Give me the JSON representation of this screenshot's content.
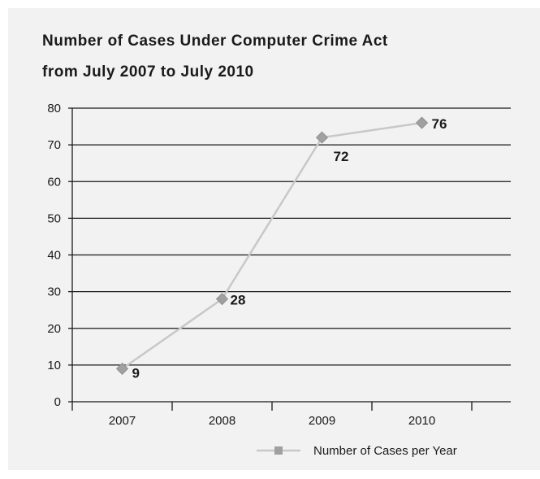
{
  "chart_data": {
    "type": "line",
    "title_line1": "Number of Cases Under Computer Crime Act",
    "title_line2": "from July 2007 to July 2010",
    "categories": [
      "2007",
      "2008",
      "2009",
      "2010"
    ],
    "series": [
      {
        "name": "Number of Cases per Year",
        "values": [
          9,
          28,
          72,
          76
        ],
        "labels": [
          "9",
          "28",
          "72",
          "76"
        ]
      }
    ],
    "ylim": [
      0,
      80
    ],
    "yticks": [
      "0",
      "10",
      "20",
      "30",
      "40",
      "50",
      "60",
      "70",
      "80"
    ],
    "grid": true,
    "legend_position": "bottom-right",
    "colors": {
      "line": "#c8c8c8",
      "marker": "#a0a0a0",
      "grid": "#1a1a1a",
      "background": "#f2f2f2"
    }
  }
}
